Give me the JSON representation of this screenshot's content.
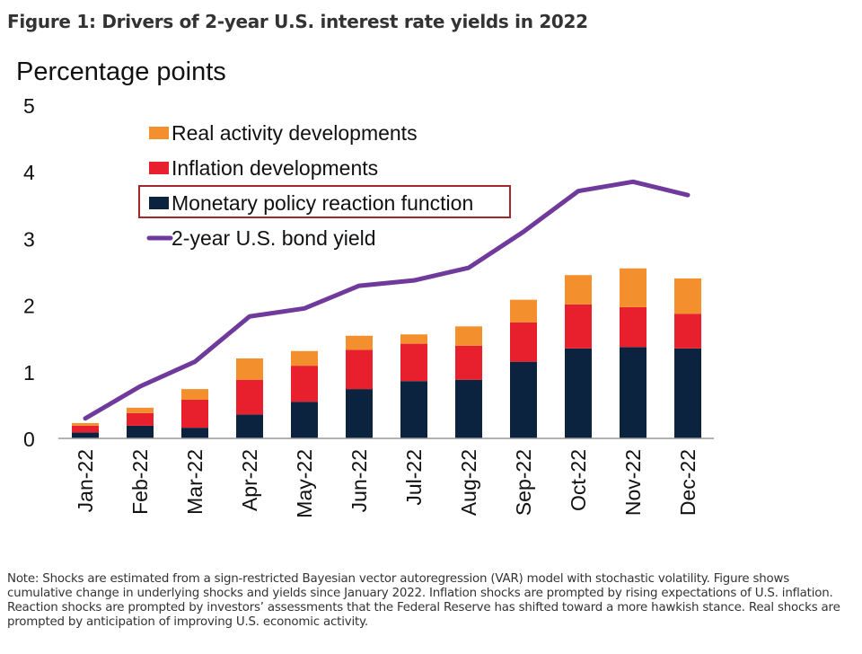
{
  "title": "Figure 1: Drivers of 2-year U.S. interest rate yields in 2022",
  "note": "Note: Shocks are estimated from a sign-restricted Bayesian vector autoregression (VAR) model with stochastic volatility. Figure shows cumulative change in underlying shocks and yields since January 2022. Inflation shocks are prompted by rising expectations of U.S. inflation. Reaction shocks are prompted by investors’ assessments that the Federal Reserve has shifted toward a more hawkish stance. Real shocks are prompted by anticipation of improving U.S. economic activity.",
  "chart_data": {
    "type": "bar",
    "stacked": true,
    "ylabel": "Percentage points",
    "ylim": [
      0,
      5
    ],
    "yticks": [
      0,
      1,
      2,
      3,
      4,
      5
    ],
    "grid": false,
    "legend_position": "top-left",
    "categories": [
      "Jan-22",
      "Feb-22",
      "Mar-22",
      "Apr-22",
      "May-22",
      "Jun-22",
      "Jul-22",
      "Aug-22",
      "Sep-22",
      "Oct-22",
      "Nov-22",
      "Dec-22"
    ],
    "series": [
      {
        "name": "Monetary policy reaction function",
        "kind": "bar",
        "color": "#0c2340",
        "values": [
          0.09,
          0.19,
          0.16,
          0.36,
          0.55,
          0.74,
          0.86,
          0.88,
          1.15,
          1.35,
          1.37,
          1.35
        ]
      },
      {
        "name": "Inflation developments",
        "kind": "bar",
        "color": "#e8202e",
        "values": [
          0.1,
          0.19,
          0.42,
          0.52,
          0.54,
          0.59,
          0.56,
          0.51,
          0.59,
          0.66,
          0.6,
          0.52
        ]
      },
      {
        "name": "Real activity developments",
        "kind": "bar",
        "color": "#f3902d",
        "values": [
          0.04,
          0.08,
          0.16,
          0.32,
          0.22,
          0.21,
          0.14,
          0.29,
          0.34,
          0.44,
          0.58,
          0.53
        ]
      },
      {
        "name": "2-year U.S. bond yield",
        "kind": "line",
        "color": "#6f3a9c",
        "values": [
          0.3,
          0.78,
          1.15,
          1.83,
          1.95,
          2.29,
          2.37,
          2.56,
          3.1,
          3.71,
          3.85,
          3.65
        ]
      }
    ],
    "legend_order": [
      "Real activity developments",
      "Inflation developments",
      "Monetary policy reaction function",
      "2-year U.S. bond yield"
    ],
    "highlighted_legend_entry": "Monetary policy reaction function",
    "highlight_color": "#a0282a"
  }
}
